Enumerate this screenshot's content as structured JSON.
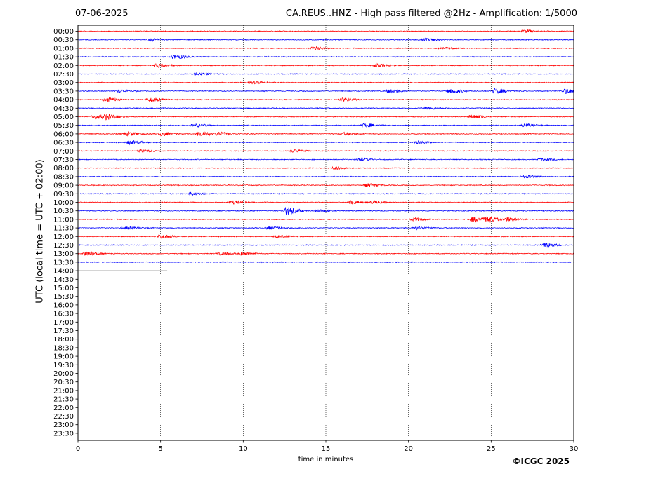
{
  "header": {
    "date": "07-06-2025",
    "title": "CA.REUS..HNZ - High pass filtered @2Hz - Amplification: 1/5000"
  },
  "footer": {
    "copyright": "©ICGC 2025"
  },
  "chart_data": {
    "type": "line",
    "title": "CA.REUS..HNZ - High pass filtered @2Hz - Amplification: 1/5000",
    "xlabel": "time in minutes",
    "ylabel": "UTC (local time = UTC + 02:00)",
    "xlim": [
      0,
      30
    ],
    "xticks": [
      0,
      5,
      10,
      15,
      20,
      25,
      30
    ],
    "grid": "vertical dotted lines at x ticks",
    "row_labels": [
      "00:00",
      "00:30",
      "01:00",
      "01:30",
      "02:00",
      "02:30",
      "03:00",
      "03:30",
      "04:00",
      "04:30",
      "05:00",
      "05:30",
      "06:00",
      "06:30",
      "07:00",
      "07:30",
      "08:00",
      "08:30",
      "09:00",
      "09:30",
      "10:00",
      "10:30",
      "11:00",
      "11:30",
      "12:00",
      "12:30",
      "13:00",
      "13:30",
      "14:00",
      "14:30",
      "15:00",
      "15:30",
      "16:00",
      "16:30",
      "17:00",
      "17:30",
      "18:00",
      "18:30",
      "19:00",
      "19:30",
      "20:00",
      "20:30",
      "21:00",
      "21:30",
      "22:00",
      "22:30",
      "23:00",
      "23:30"
    ],
    "trace_colors": [
      "#ff0000",
      "#0000ff"
    ],
    "traces_recorded": 28,
    "last_trace_end_minute": 5.4,
    "events": [
      {
        "row": "00:00",
        "minute": 27.0,
        "amplitude": 0.35
      },
      {
        "row": "00:30",
        "minute": 4.3,
        "amplitude": 0.3
      },
      {
        "row": "00:30",
        "minute": 21.0,
        "amplitude": 0.35
      },
      {
        "row": "01:00",
        "minute": 14.2,
        "amplitude": 0.35
      },
      {
        "row": "01:00",
        "minute": 22.0,
        "amplitude": 0.3
      },
      {
        "row": "01:30",
        "minute": 5.8,
        "amplitude": 0.5
      },
      {
        "row": "02:00",
        "minute": 4.8,
        "amplitude": 0.45
      },
      {
        "row": "02:00",
        "minute": 18.0,
        "amplitude": 0.4
      },
      {
        "row": "02:30",
        "minute": 7.2,
        "amplitude": 0.3
      },
      {
        "row": "03:00",
        "minute": 10.5,
        "amplitude": 0.35
      },
      {
        "row": "03:30",
        "minute": 2.5,
        "amplitude": 0.3
      },
      {
        "row": "03:30",
        "minute": 18.8,
        "amplitude": 0.4
      },
      {
        "row": "03:30",
        "minute": 22.5,
        "amplitude": 0.5
      },
      {
        "row": "03:30",
        "minute": 25.2,
        "amplitude": 0.6
      },
      {
        "row": "03:30",
        "minute": 29.5,
        "amplitude": 0.55
      },
      {
        "row": "04:00",
        "minute": 1.7,
        "amplitude": 0.5
      },
      {
        "row": "04:00",
        "minute": 4.3,
        "amplitude": 0.45
      },
      {
        "row": "04:00",
        "minute": 16.0,
        "amplitude": 0.45
      },
      {
        "row": "04:30",
        "minute": 21.0,
        "amplitude": 0.35
      },
      {
        "row": "05:00",
        "minute": 1.0,
        "amplitude": 0.55
      },
      {
        "row": "05:00",
        "minute": 1.7,
        "amplitude": 0.5
      },
      {
        "row": "05:00",
        "minute": 23.8,
        "amplitude": 0.5
      },
      {
        "row": "05:30",
        "minute": 7.0,
        "amplitude": 0.4
      },
      {
        "row": "05:30",
        "minute": 17.3,
        "amplitude": 0.45
      },
      {
        "row": "05:30",
        "minute": 27.0,
        "amplitude": 0.3
      },
      {
        "row": "06:00",
        "minute": 2.9,
        "amplitude": 0.45
      },
      {
        "row": "06:00",
        "minute": 5.0,
        "amplitude": 0.45
      },
      {
        "row": "06:00",
        "minute": 7.3,
        "amplitude": 0.65
      },
      {
        "row": "06:00",
        "minute": 8.5,
        "amplitude": 0.4
      },
      {
        "row": "06:00",
        "minute": 16.0,
        "amplitude": 0.35
      },
      {
        "row": "06:30",
        "minute": 3.1,
        "amplitude": 0.45
      },
      {
        "row": "06:30",
        "minute": 20.5,
        "amplitude": 0.3
      },
      {
        "row": "07:00",
        "minute": 3.8,
        "amplitude": 0.3
      },
      {
        "row": "07:00",
        "minute": 13.0,
        "amplitude": 0.3
      },
      {
        "row": "07:30",
        "minute": 17.0,
        "amplitude": 0.35
      },
      {
        "row": "07:30",
        "minute": 28.0,
        "amplitude": 0.35
      },
      {
        "row": "08:00",
        "minute": 15.5,
        "amplitude": 0.3
      },
      {
        "row": "08:30",
        "minute": 27.0,
        "amplitude": 0.3
      },
      {
        "row": "09:00",
        "minute": 17.5,
        "amplitude": 0.4
      },
      {
        "row": "09:30",
        "minute": 6.8,
        "amplitude": 0.35
      },
      {
        "row": "10:00",
        "minute": 9.3,
        "amplitude": 0.4
      },
      {
        "row": "10:00",
        "minute": 16.5,
        "amplitude": 0.35
      },
      {
        "row": "10:00",
        "minute": 17.8,
        "amplitude": 0.3
      },
      {
        "row": "10:30",
        "minute": 12.6,
        "amplitude": 1.0
      },
      {
        "row": "10:30",
        "minute": 14.5,
        "amplitude": 0.3
      },
      {
        "row": "11:00",
        "minute": 20.3,
        "amplitude": 0.35
      },
      {
        "row": "11:00",
        "minute": 23.9,
        "amplitude": 0.6
      },
      {
        "row": "11:00",
        "minute": 24.8,
        "amplitude": 0.7
      },
      {
        "row": "11:00",
        "minute": 26.0,
        "amplitude": 0.45
      },
      {
        "row": "11:30",
        "minute": 2.8,
        "amplitude": 0.3
      },
      {
        "row": "11:30",
        "minute": 11.5,
        "amplitude": 0.35
      },
      {
        "row": "11:30",
        "minute": 20.5,
        "amplitude": 0.35
      },
      {
        "row": "12:00",
        "minute": 5.0,
        "amplitude": 0.45
      },
      {
        "row": "12:00",
        "minute": 12.0,
        "amplitude": 0.3
      },
      {
        "row": "12:30",
        "minute": 28.2,
        "amplitude": 0.55
      },
      {
        "row": "13:00",
        "minute": 0.5,
        "amplitude": 0.5
      },
      {
        "row": "13:00",
        "minute": 8.6,
        "amplitude": 0.35
      },
      {
        "row": "13:00",
        "minute": 9.9,
        "amplitude": 0.35
      }
    ]
  }
}
